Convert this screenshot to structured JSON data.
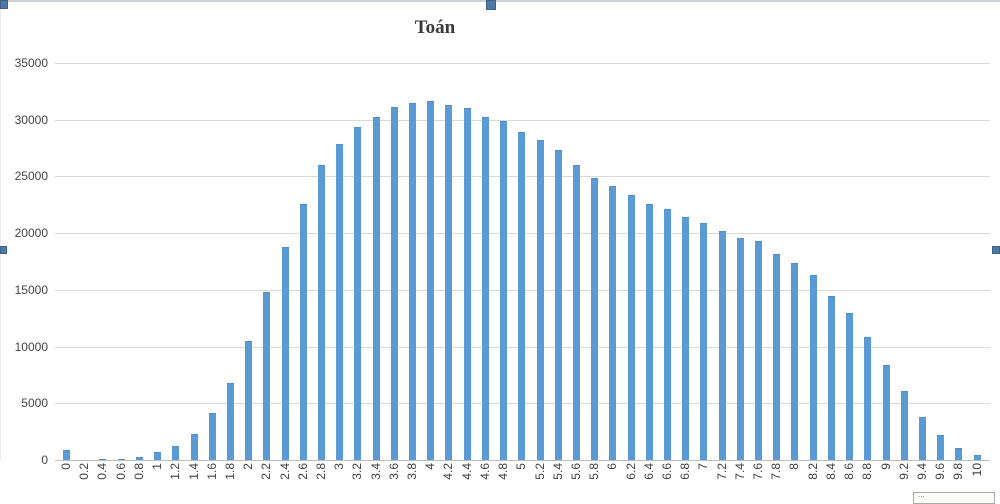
{
  "title": "Toán",
  "chart_data": {
    "type": "bar",
    "title": "Toán",
    "xlabel": "",
    "ylabel": "",
    "ylim": [
      0,
      35000
    ],
    "yticks": [
      0,
      5000,
      10000,
      15000,
      20000,
      25000,
      30000,
      35000
    ],
    "grid": true,
    "legend_position": "none",
    "bar_color": "#5b9bd5",
    "gridline_color": "#d9d9d9",
    "categories": [
      "0",
      "0.2",
      "0.4",
      "0.6",
      "0.8",
      "1",
      "1.2",
      "1.4",
      "1.6",
      "1.8",
      "2",
      "2.2",
      "2.4",
      "2.6",
      "2.8",
      "3",
      "3.2",
      "3.4",
      "3.6",
      "3.8",
      "4",
      "4.2",
      "4.4",
      "4.6",
      "4.8",
      "5",
      "5.2",
      "5.4",
      "5.6",
      "5.8",
      "6",
      "6.2",
      "6.4",
      "6.6",
      "6.8",
      "7",
      "7.2",
      "7.4",
      "7.6",
      "7.8",
      "8",
      "8.2",
      "8.4",
      "8.6",
      "8.8",
      "9",
      "9.2",
      "9.4",
      "9.6",
      "9.8",
      "10"
    ],
    "values": [
      900,
      30,
      50,
      100,
      250,
      700,
      1250,
      2300,
      4100,
      6800,
      10500,
      14800,
      18800,
      22600,
      26000,
      27900,
      29400,
      30200,
      31100,
      31500,
      31650,
      31300,
      31000,
      30200,
      29900,
      28900,
      28200,
      27300,
      26000,
      24900,
      24200,
      23400,
      22600,
      22100,
      21400,
      20900,
      20200,
      19600,
      19300,
      18200,
      17400,
      16300,
      14500,
      13000,
      10800,
      8400,
      6100,
      3800,
      2200,
      1050,
      450
    ]
  },
  "overlay": {
    "selection_handle_color": "#4d79a3",
    "selection_handles": [
      "top-left",
      "top-center",
      "left-middle",
      "right-middle"
    ],
    "partial_tooltip_text": "⋯"
  }
}
